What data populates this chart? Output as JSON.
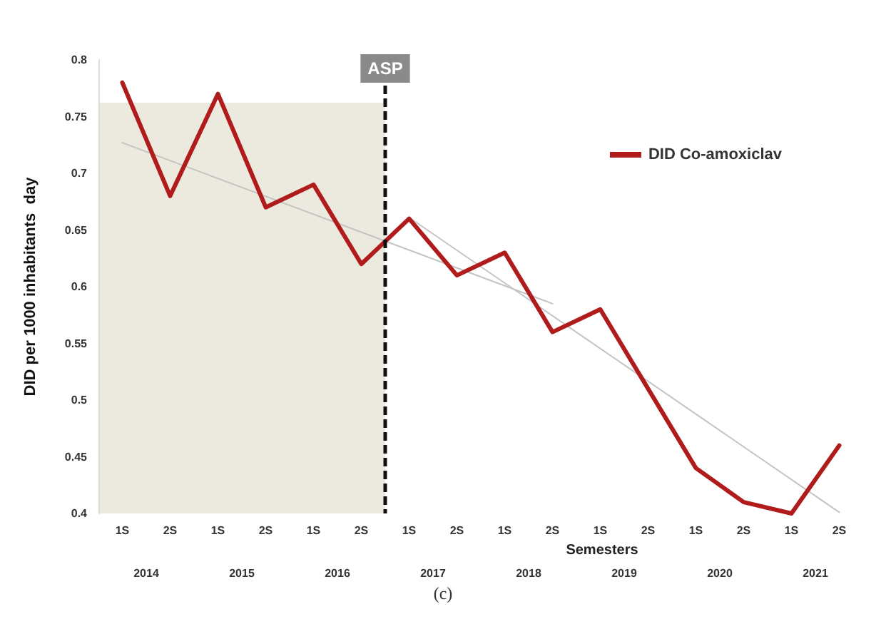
{
  "chart_data": {
    "type": "line",
    "ylabel": "DID per 1000 inhabitants  day",
    "xlabel": "Semesters",
    "annotations": [
      "(c)",
      "ASP",
      "2014",
      "2015",
      "2016",
      "2017",
      "2018",
      "2019",
      "2020",
      "2021"
    ],
    "categories": [
      "1S",
      "2S",
      "1S",
      "2S",
      "1S",
      "2S",
      "1S",
      "2S",
      "1S",
      "2S",
      "1S",
      "2S",
      "1S",
      "2S",
      "1S",
      "2S"
    ],
    "ylim": [
      0.4,
      0.8
    ],
    "yticks": [
      0.4,
      0.45,
      0.5,
      0.55,
      0.6,
      0.65,
      0.7,
      0.75,
      0.8
    ],
    "grid": false,
    "legend": "top right",
    "marker": "none",
    "line_style": "solid",
    "series": [
      {
        "name": "DID Co-amoxiclav",
        "color": "#b01c1c",
        "values": [
          0.78,
          0.68,
          0.77,
          0.67,
          0.69,
          0.62,
          0.66,
          0.61,
          0.63,
          0.56,
          0.58,
          0.51,
          0.44,
          0.41,
          0.4,
          0.46
        ]
      },
      {
        "color": "#c4c4c4",
        "values": [
          0.727,
          null,
          null,
          null,
          null,
          null,
          null,
          null,
          null,
          0.585,
          null,
          null,
          null,
          null,
          null,
          null
        ]
      },
      {
        "color": "#c4c4c4",
        "values": [
          null,
          null,
          null,
          null,
          null,
          null,
          0.661,
          null,
          null,
          null,
          null,
          null,
          null,
          null,
          null,
          0.401
        ]
      }
    ]
  }
}
